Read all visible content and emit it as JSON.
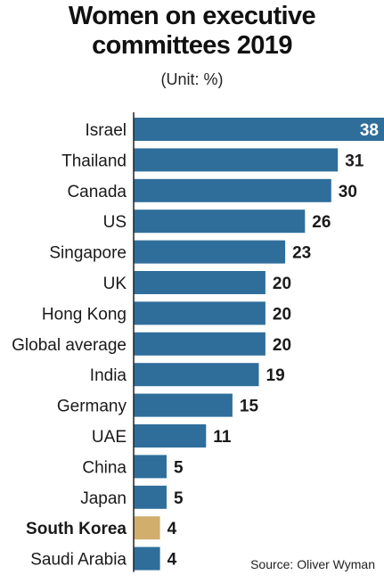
{
  "chart_data": {
    "type": "bar",
    "orientation": "horizontal",
    "title_lines": [
      "Women on executive",
      "committees 2019"
    ],
    "subtitle": "(Unit: %)",
    "source": "Source: Oliver Wyman",
    "categories": [
      "Israel",
      "Thailand",
      "Canada",
      "US",
      "Singapore",
      "UK",
      "Hong Kong",
      "Global average",
      "India",
      "Germany",
      "UAE",
      "China",
      "Japan",
      "South Korea",
      "Saudi Arabia"
    ],
    "values": [
      38,
      31,
      30,
      26,
      23,
      20,
      20,
      20,
      19,
      15,
      11,
      5,
      5,
      4,
      4
    ],
    "value_labels": [
      "38",
      "31",
      "30",
      "26",
      "23",
      "20",
      "20",
      "20",
      "19",
      "15",
      "11",
      "5",
      "5",
      "4",
      "4"
    ],
    "highlight": "South Korea",
    "xlim": [
      0,
      38
    ],
    "grid": false,
    "legend": "none",
    "colors": {
      "bar": "#2f6e9b",
      "highlight": "#d2ae6d",
      "axis": "#222222",
      "label": "#1a1a1a",
      "inside_label": "#ffffff"
    }
  }
}
